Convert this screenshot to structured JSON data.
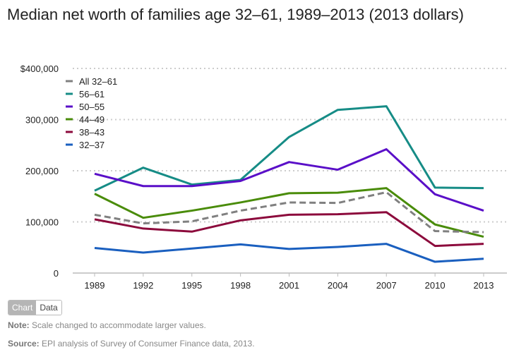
{
  "toggle": {
    "chart_label": "Chart",
    "data_label": "Data"
  },
  "footer": {
    "note_label": "Note:",
    "note_text": "Scale changed to accommodate larger values.",
    "source_label": "Source:",
    "source_text": "EPI analysis of  Survey of Consumer Finance data, 2013."
  },
  "chart_data": {
    "type": "line",
    "title": "Median net worth of families age 32–61, 1989–2013 (2013 dollars)",
    "x": [
      "1989",
      "1992",
      "1995",
      "1998",
      "2001",
      "2004",
      "2007",
      "2010",
      "2013"
    ],
    "ylim": [
      0,
      400000
    ],
    "yticks": [
      0,
      100000,
      200000,
      300000,
      400000
    ],
    "ytick_labels": [
      "0",
      "100,000",
      "200,000",
      "300,000",
      "$400,000"
    ],
    "grid": true,
    "legend_position": "top-left",
    "series": [
      {
        "name": "All 32–61",
        "color": "#808080",
        "dashed": true,
        "values": [
          114000,
          97000,
          101000,
          122000,
          138000,
          137000,
          158000,
          82000,
          80000
        ]
      },
      {
        "name": "56–61",
        "color": "#168c86",
        "values": [
          161000,
          206000,
          173000,
          182000,
          266000,
          319000,
          326000,
          167000,
          166000
        ]
      },
      {
        "name": "50–55",
        "color": "#5a0fc8",
        "values": [
          194000,
          170000,
          170000,
          180000,
          217000,
          202000,
          242000,
          154000,
          122000
        ]
      },
      {
        "name": "44–49",
        "color": "#4a8c0a",
        "values": [
          155000,
          108000,
          122000,
          138000,
          156000,
          157000,
          166000,
          95000,
          71000
        ]
      },
      {
        "name": "38–43",
        "color": "#8c0a3c",
        "values": [
          105000,
          87000,
          81000,
          103000,
          114000,
          115000,
          119000,
          53000,
          57000
        ]
      },
      {
        "name": "32–37",
        "color": "#1a5fbf",
        "values": [
          49000,
          40000,
          48000,
          56000,
          47000,
          51000,
          57000,
          22000,
          28000
        ]
      }
    ]
  }
}
